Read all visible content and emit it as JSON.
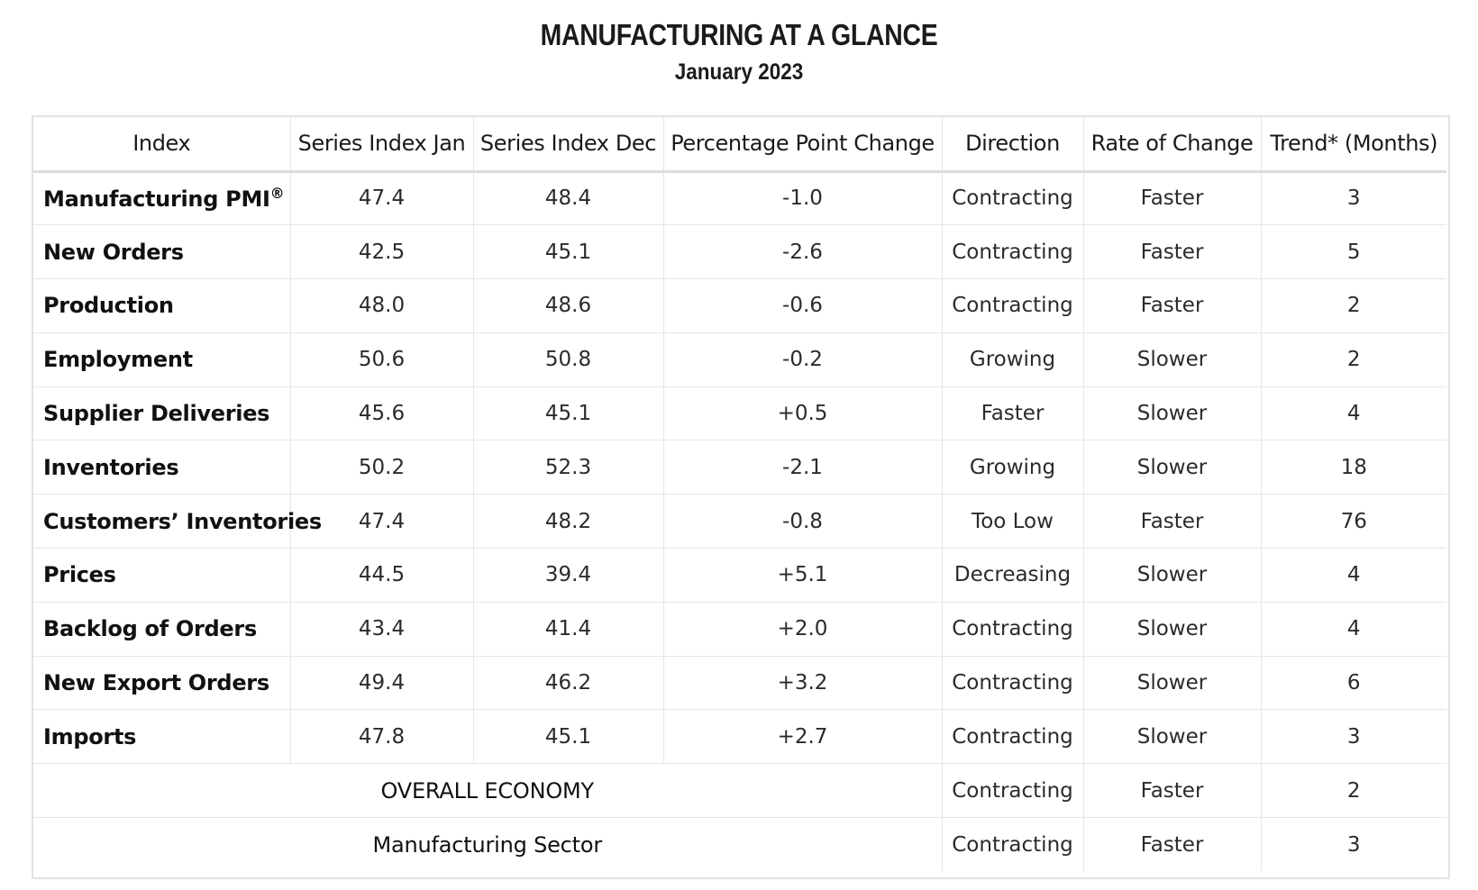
{
  "title": "MANUFACTURING AT A GLANCE",
  "subtitle": "January 2023",
  "columns": [
    "Index",
    "Series Index Jan",
    "Series Index Dec",
    "Percentage Point Change",
    "Direction",
    "Rate of Change",
    "Trend* (Months)"
  ],
  "rows": [
    {
      "name": "Manufacturing PMI",
      "sup": "®",
      "jan": "47.4",
      "dec": "48.4",
      "change": "-1.0",
      "direction": "Contracting",
      "rate": "Faster",
      "trend": "3"
    },
    {
      "name": "New Orders",
      "jan": "42.5",
      "dec": "45.1",
      "change": "-2.6",
      "direction": "Contracting",
      "rate": "Faster",
      "trend": "5"
    },
    {
      "name": "Production",
      "jan": "48.0",
      "dec": "48.6",
      "change": "-0.6",
      "direction": "Contracting",
      "rate": "Faster",
      "trend": "2"
    },
    {
      "name": "Employment",
      "jan": "50.6",
      "dec": "50.8",
      "change": "-0.2",
      "direction": "Growing",
      "rate": "Slower",
      "trend": "2"
    },
    {
      "name": "Supplier Deliveries",
      "jan": "45.6",
      "dec": "45.1",
      "change": "+0.5",
      "direction": "Faster",
      "rate": "Slower",
      "trend": "4"
    },
    {
      "name": "Inventories",
      "jan": "50.2",
      "dec": "52.3",
      "change": "-2.1",
      "direction": "Growing",
      "rate": "Slower",
      "trend": "18"
    },
    {
      "name": "Customers’ Inventories",
      "jan": "47.4",
      "dec": "48.2",
      "change": "-0.8",
      "direction": "Too Low",
      "rate": "Faster",
      "trend": "76"
    },
    {
      "name": "Prices",
      "jan": "44.5",
      "dec": "39.4",
      "change": "+5.1",
      "direction": "Decreasing",
      "rate": "Slower",
      "trend": "4"
    },
    {
      "name": "Backlog of Orders",
      "jan": "43.4",
      "dec": "41.4",
      "change": "+2.0",
      "direction": "Contracting",
      "rate": "Slower",
      "trend": "4"
    },
    {
      "name": "New Export Orders",
      "jan": "49.4",
      "dec": "46.2",
      "change": "+3.2",
      "direction": "Contracting",
      "rate": "Slower",
      "trend": "6"
    },
    {
      "name": "Imports",
      "jan": "47.8",
      "dec": "45.1",
      "change": "+2.7",
      "direction": "Contracting",
      "rate": "Slower",
      "trend": "3"
    }
  ],
  "summary_rows": [
    {
      "label": "OVERALL ECONOMY",
      "direction": "Contracting",
      "rate": "Faster",
      "trend": "2"
    },
    {
      "label": "Manufacturing Sector",
      "direction": "Contracting",
      "rate": "Faster",
      "trend": "3"
    }
  ]
}
